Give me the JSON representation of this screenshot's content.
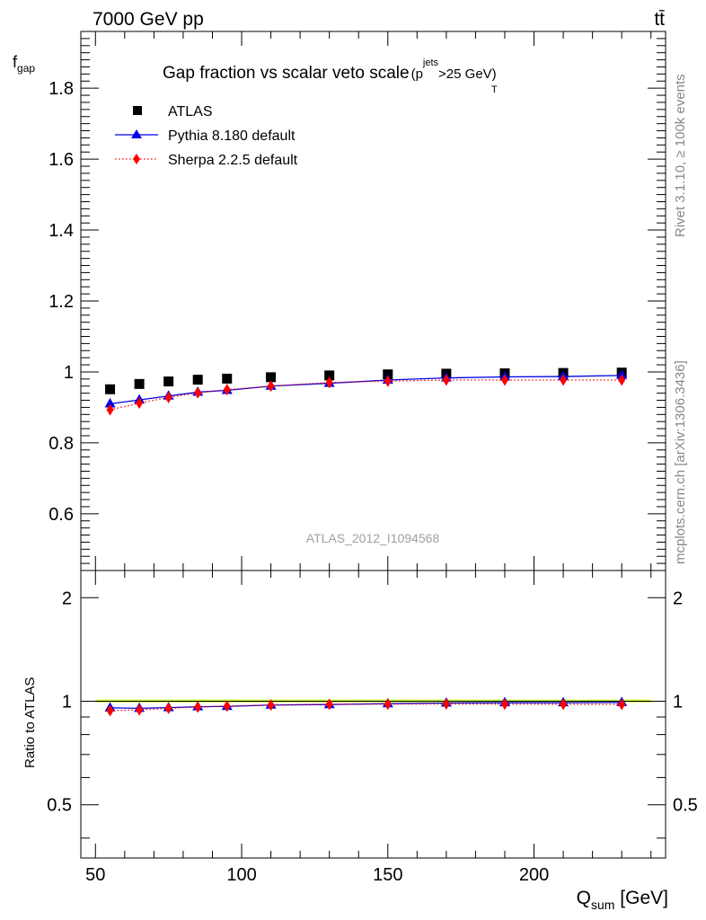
{
  "header": {
    "left": "7000 GeV pp",
    "right": "tt̄"
  },
  "side_labels": {
    "rivet": "Rivet 3.1.10, ≥ 100k events",
    "mcplots": "mcplots.cern.ch [arXiv:1306.3436]"
  },
  "chart_data": {
    "type": "scatter",
    "title": "Gap fraction vs scalar veto scale",
    "title_cut": {
      "p": "(p",
      "sup": "jets",
      "sub": "T",
      "rest": ">25 GeV)"
    },
    "analysis_id": "ATLAS_2012_I1094568",
    "xlabel": {
      "main": "Q",
      "sub": "sum",
      "unit": " [GeV]"
    },
    "ylabel": {
      "main": "f",
      "sub": "gap"
    },
    "ratio_ylabel": "Ratio to ATLAS",
    "xlim": [
      45,
      245
    ],
    "ylim": [
      0.44,
      1.96
    ],
    "ratio_ylim": [
      0.35,
      2.4
    ],
    "x_ticks": [
      "50",
      "100",
      "150",
      "200"
    ],
    "y_ticks": [
      "0.6",
      "0.8",
      "1",
      "1.2",
      "1.4",
      "1.6",
      "1.8"
    ],
    "ratio_ticks": [
      "0.5",
      "1",
      "2"
    ],
    "x": [
      55,
      65,
      75,
      85,
      95,
      110,
      130,
      150,
      170,
      190,
      210,
      230
    ],
    "series": [
      {
        "name": "ATLAS",
        "color": "#000000",
        "marker": "square",
        "values": [
          0.951,
          0.966,
          0.973,
          0.978,
          0.981,
          0.985,
          0.99,
          0.993,
          0.995,
          0.996,
          0.997,
          0.998
        ]
      },
      {
        "name": "Pythia 8.180 default",
        "color": "#0000e6",
        "marker": "triangle",
        "line": "solid",
        "values": [
          0.91,
          0.921,
          0.932,
          0.943,
          0.948,
          0.96,
          0.968,
          0.977,
          0.983,
          0.986,
          0.987,
          0.99
        ]
      },
      {
        "name": "Sherpa 2.2.5 default",
        "color": "#ff0000",
        "marker": "diamond",
        "line": "dotted",
        "values": [
          0.893,
          0.912,
          0.928,
          0.941,
          0.95,
          0.96,
          0.97,
          0.974,
          0.977,
          0.977,
          0.977,
          0.977
        ]
      }
    ],
    "ratio_series": [
      {
        "name": "Pythia 8.180 default",
        "values": [
          0.957,
          0.954,
          0.958,
          0.964,
          0.966,
          0.975,
          0.978,
          0.984,
          0.988,
          0.99,
          0.99,
          0.992
        ]
      },
      {
        "name": "Sherpa 2.2.5 default",
        "values": [
          0.939,
          0.944,
          0.954,
          0.962,
          0.968,
          0.975,
          0.98,
          0.981,
          0.982,
          0.981,
          0.98,
          0.979
        ]
      }
    ],
    "ratio_band_color": "#ccff33",
    "legend_position": "top-left"
  }
}
